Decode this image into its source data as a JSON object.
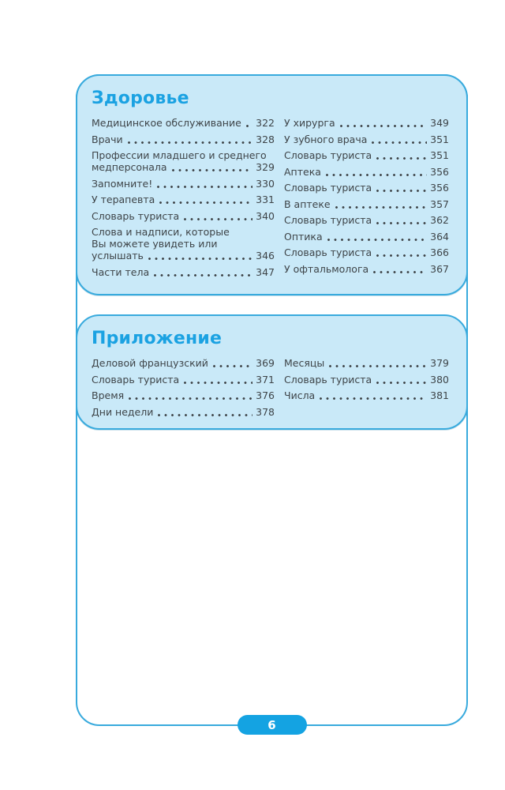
{
  "page": {
    "number": "6"
  },
  "colors": {
    "accent": "#1ba2e2",
    "border": "#38aadd",
    "box_fill": "#c9e9f8",
    "text": "#3e4448",
    "pill": "#14a3e2"
  },
  "sections": [
    {
      "title": "Здоровье",
      "columns": [
        [
          {
            "lines": [
              "Медицинское обслуживание"
            ],
            "page": "322"
          },
          {
            "lines": [
              "Врачи"
            ],
            "page": "328"
          },
          {
            "lines": [
              "Профессии младшего и среднего",
              "медперсонала"
            ],
            "page": "329"
          },
          {
            "lines": [
              "Запомните!"
            ],
            "page": "330"
          },
          {
            "lines": [
              "У терапевта"
            ],
            "page": "331"
          },
          {
            "lines": [
              "Словарь туриста"
            ],
            "page": "340"
          },
          {
            "lines": [
              "Слова и надписи, которые",
              "Вы можете увидеть или",
              "услышать"
            ],
            "page": "346"
          },
          {
            "lines": [
              "Части тела"
            ],
            "page": "347"
          }
        ],
        [
          {
            "lines": [
              "У хирурга"
            ],
            "page": "349"
          },
          {
            "lines": [
              "У зубного врача"
            ],
            "page": "351"
          },
          {
            "lines": [
              "Словарь туриста"
            ],
            "page": "351"
          },
          {
            "lines": [
              "Аптека"
            ],
            "page": "356"
          },
          {
            "lines": [
              "Словарь туриста"
            ],
            "page": "356"
          },
          {
            "lines": [
              "В аптеке"
            ],
            "page": "357"
          },
          {
            "lines": [
              "Словарь туриста"
            ],
            "page": "362"
          },
          {
            "lines": [
              "Оптика"
            ],
            "page": "364"
          },
          {
            "lines": [
              "Словарь туриста"
            ],
            "page": "366"
          },
          {
            "lines": [
              "У офтальмолога"
            ],
            "page": "367"
          }
        ]
      ]
    },
    {
      "title": "Приложение",
      "columns": [
        [
          {
            "lines": [
              "Деловой французский"
            ],
            "page": "369"
          },
          {
            "lines": [
              "Словарь туриста"
            ],
            "page": "371"
          },
          {
            "lines": [
              "Время"
            ],
            "page": "376"
          },
          {
            "lines": [
              "Дни недели"
            ],
            "page": "378"
          }
        ],
        [
          {
            "lines": [
              "Месяцы"
            ],
            "page": "379"
          },
          {
            "lines": [
              "Словарь туриста"
            ],
            "page": "380"
          },
          {
            "lines": [
              "Числа"
            ],
            "page": "381"
          }
        ]
      ]
    }
  ]
}
